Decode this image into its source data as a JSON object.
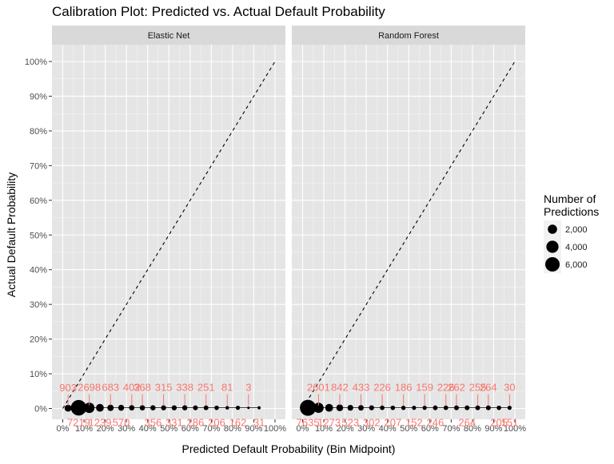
{
  "chart_data": {
    "type": "scatter",
    "title": "Calibration Plot: Predicted vs. Actual Default Probability",
    "xlabel": "Predicted Default Probability (Bin Midpoint)",
    "ylabel": "Actual Default Probability",
    "xlim": [
      0,
      1
    ],
    "ylim": [
      0,
      1
    ],
    "x_ticks": [
      "0%",
      "10%",
      "20%",
      "30%",
      "40%",
      "50%",
      "60%",
      "70%",
      "80%",
      "90%",
      "100%"
    ],
    "y_ticks": [
      "0%",
      "10%",
      "20%",
      "30%",
      "40%",
      "50%",
      "60%",
      "70%",
      "80%",
      "90%",
      "100%"
    ],
    "reference_line": "y = x (dashed)",
    "grid": true,
    "colors": {
      "panel_bg": "#e5e5e5",
      "strip_bg": "#d9d9d9",
      "grid": "#ffffff",
      "point": "#000000",
      "label": "#f8766d"
    },
    "legend": {
      "title": "Number of Predictions",
      "position": "right",
      "sizes": [
        2000,
        4000,
        6000
      ],
      "labels": [
        "2,000",
        "4,000",
        "6,000"
      ]
    },
    "panels": [
      {
        "name": "Elastic Net",
        "points": [
          {
            "x": 0.025,
            "y": 0.001,
            "count": 903,
            "label": "903",
            "label_pos": "above"
          },
          {
            "x": 0.075,
            "y": 0.002,
            "count": 7219,
            "label": "7219",
            "label_pos": "below"
          },
          {
            "x": 0.125,
            "y": 0.002,
            "count": 2698,
            "label": "2698",
            "label_pos": "above"
          },
          {
            "x": 0.175,
            "y": 0.002,
            "count": 1239,
            "label": "1239",
            "label_pos": "below"
          },
          {
            "x": 0.225,
            "y": 0.002,
            "count": 683,
            "label": "683",
            "label_pos": "above"
          },
          {
            "x": 0.275,
            "y": 0.002,
            "count": 570,
            "label": "570",
            "label_pos": "below"
          },
          {
            "x": 0.325,
            "y": 0.002,
            "count": 402,
            "label": "402",
            "label_pos": "above"
          },
          {
            "x": 0.375,
            "y": 0.002,
            "count": 368,
            "label": "368",
            "label_pos": "above"
          },
          {
            "x": 0.425,
            "y": 0.002,
            "count": 356,
            "label": "356",
            "label_pos": "below"
          },
          {
            "x": 0.475,
            "y": 0.002,
            "count": 315,
            "label": "315",
            "label_pos": "above"
          },
          {
            "x": 0.525,
            "y": 0.002,
            "count": 331,
            "label": "331",
            "label_pos": "below"
          },
          {
            "x": 0.575,
            "y": 0.002,
            "count": 338,
            "label": "338",
            "label_pos": "above"
          },
          {
            "x": 0.625,
            "y": 0.002,
            "count": 286,
            "label": "286",
            "label_pos": "below"
          },
          {
            "x": 0.675,
            "y": 0.002,
            "count": 251,
            "label": "251",
            "label_pos": "above"
          },
          {
            "x": 0.725,
            "y": 0.002,
            "count": 206,
            "label": "206",
            "label_pos": "below"
          },
          {
            "x": 0.775,
            "y": 0.002,
            "count": 81,
            "label": "81",
            "label_pos": "above"
          },
          {
            "x": 0.825,
            "y": 0.002,
            "count": 162,
            "label": "162",
            "label_pos": "below"
          },
          {
            "x": 0.875,
            "y": 0.002,
            "count": 3,
            "label": "3",
            "label_pos": "above"
          },
          {
            "x": 0.925,
            "y": 0.002,
            "count": 31,
            "label": "31",
            "label_pos": "below"
          }
        ]
      },
      {
        "name": "Random Forest",
        "points": [
          {
            "x": 0.025,
            "y": 0.002,
            "count": 7635,
            "label": "7635",
            "label_pos": "below"
          },
          {
            "x": 0.075,
            "y": 0.002,
            "count": 2601,
            "label": "2601",
            "label_pos": "above"
          },
          {
            "x": 0.125,
            "y": 0.002,
            "count": 1273,
            "label": "1273",
            "label_pos": "below"
          },
          {
            "x": 0.175,
            "y": 0.002,
            "count": 842,
            "label": "842",
            "label_pos": "above"
          },
          {
            "x": 0.225,
            "y": 0.002,
            "count": 523,
            "label": "523",
            "label_pos": "below"
          },
          {
            "x": 0.275,
            "y": 0.002,
            "count": 433,
            "label": "433",
            "label_pos": "above"
          },
          {
            "x": 0.325,
            "y": 0.002,
            "count": 302,
            "label": "302",
            "label_pos": "below"
          },
          {
            "x": 0.375,
            "y": 0.002,
            "count": 226,
            "label": "226",
            "label_pos": "above"
          },
          {
            "x": 0.425,
            "y": 0.002,
            "count": 207,
            "label": "207",
            "label_pos": "below"
          },
          {
            "x": 0.475,
            "y": 0.002,
            "count": 186,
            "label": "186",
            "label_pos": "above"
          },
          {
            "x": 0.525,
            "y": 0.002,
            "count": 152,
            "label": "152",
            "label_pos": "below"
          },
          {
            "x": 0.575,
            "y": 0.002,
            "count": 159,
            "label": "159",
            "label_pos": "above"
          },
          {
            "x": 0.625,
            "y": 0.002,
            "count": 246,
            "label": "246",
            "label_pos": "below"
          },
          {
            "x": 0.675,
            "y": 0.002,
            "count": 226,
            "label": "226",
            "label_pos": "above"
          },
          {
            "x": 0.725,
            "y": 0.002,
            "count": 262,
            "label": "262",
            "label_pos": "above"
          },
          {
            "x": 0.775,
            "y": 0.002,
            "count": 264,
            "label": "264",
            "label_pos": "below"
          },
          {
            "x": 0.825,
            "y": 0.002,
            "count": 255,
            "label": "255",
            "label_pos": "above"
          },
          {
            "x": 0.875,
            "y": 0.002,
            "count": 264,
            "label": "264",
            "label_pos": "above"
          },
          {
            "x": 0.925,
            "y": 0.002,
            "count": 205,
            "label": "205",
            "label_pos": "below"
          },
          {
            "x": 0.975,
            "y": 0.002,
            "count": 30,
            "label": "30",
            "label_pos": "above"
          },
          {
            "x": 0.975,
            "y": 0.002,
            "count": 151,
            "label": "151",
            "label_pos": "below"
          }
        ]
      }
    ]
  }
}
